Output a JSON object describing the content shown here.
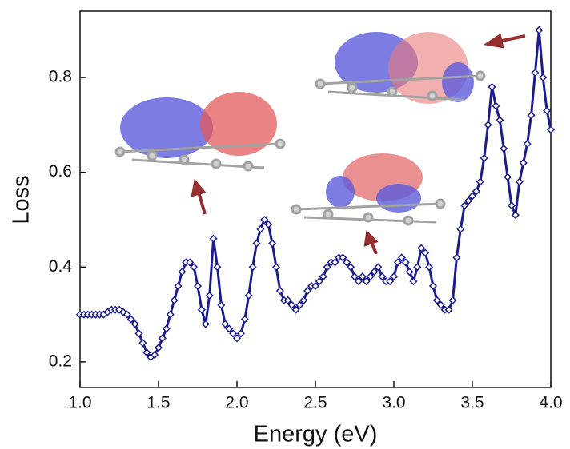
{
  "chart_data": {
    "type": "line",
    "x_label": "Energy (eV)",
    "y_label": "Loss",
    "x": [
      1.0,
      1.025,
      1.05,
      1.075,
      1.1,
      1.125,
      1.15,
      1.175,
      1.2,
      1.225,
      1.25,
      1.275,
      1.3,
      1.325,
      1.35,
      1.375,
      1.4,
      1.425,
      1.45,
      1.475,
      1.5,
      1.525,
      1.55,
      1.575,
      1.6,
      1.625,
      1.65,
      1.675,
      1.7,
      1.725,
      1.75,
      1.775,
      1.8,
      1.825,
      1.85,
      1.875,
      1.9,
      1.925,
      1.95,
      1.975,
      2.0,
      2.025,
      2.05,
      2.075,
      2.1,
      2.125,
      2.15,
      2.175,
      2.2,
      2.225,
      2.25,
      2.275,
      2.3,
      2.325,
      2.35,
      2.375,
      2.4,
      2.425,
      2.45,
      2.475,
      2.5,
      2.525,
      2.55,
      2.575,
      2.6,
      2.625,
      2.65,
      2.675,
      2.7,
      2.725,
      2.75,
      2.775,
      2.8,
      2.825,
      2.85,
      2.875,
      2.9,
      2.925,
      2.95,
      2.975,
      3.0,
      3.025,
      3.05,
      3.075,
      3.1,
      3.125,
      3.15,
      3.175,
      3.2,
      3.225,
      3.25,
      3.275,
      3.3,
      3.325,
      3.35,
      3.375,
      3.4,
      3.425,
      3.45,
      3.475,
      3.5,
      3.525,
      3.55,
      3.575,
      3.6,
      3.625,
      3.65,
      3.675,
      3.7,
      3.725,
      3.75,
      3.775,
      3.8,
      3.825,
      3.85,
      3.875,
      3.9,
      3.925,
      3.95,
      3.975,
      4.0
    ],
    "series": [
      {
        "color": "#1c1c8f",
        "values": [
          0.3,
          0.3,
          0.3,
          0.3,
          0.3,
          0.3,
          0.3,
          0.305,
          0.31,
          0.31,
          0.31,
          0.305,
          0.3,
          0.29,
          0.28,
          0.26,
          0.24,
          0.22,
          0.21,
          0.215,
          0.23,
          0.25,
          0.27,
          0.3,
          0.33,
          0.36,
          0.39,
          0.41,
          0.41,
          0.4,
          0.36,
          0.31,
          0.28,
          0.34,
          0.46,
          0.4,
          0.32,
          0.28,
          0.27,
          0.26,
          0.25,
          0.26,
          0.29,
          0.34,
          0.4,
          0.45,
          0.48,
          0.5,
          0.49,
          0.45,
          0.4,
          0.35,
          0.33,
          0.33,
          0.32,
          0.31,
          0.32,
          0.33,
          0.35,
          0.36,
          0.36,
          0.37,
          0.38,
          0.4,
          0.41,
          0.41,
          0.42,
          0.42,
          0.41,
          0.4,
          0.38,
          0.37,
          0.38,
          0.37,
          0.38,
          0.39,
          0.4,
          0.38,
          0.37,
          0.37,
          0.38,
          0.41,
          0.42,
          0.41,
          0.39,
          0.37,
          0.4,
          0.44,
          0.43,
          0.4,
          0.36,
          0.33,
          0.32,
          0.31,
          0.31,
          0.33,
          0.42,
          0.48,
          0.53,
          0.54,
          0.55,
          0.56,
          0.58,
          0.63,
          0.7,
          0.78,
          0.74,
          0.71,
          0.65,
          0.59,
          0.53,
          0.51,
          0.58,
          0.62,
          0.66,
          0.72,
          0.81,
          0.9,
          0.8,
          0.73,
          0.69
        ]
      }
    ],
    "xlim": [
      1.0,
      4.0
    ],
    "ylim": [
      0.146,
      0.94
    ],
    "xticks": [
      {
        "value": 1.0,
        "label": "1.0"
      },
      1.5,
      {
        "value": 2.0,
        "label": "2.0"
      },
      2.5,
      {
        "value": 3.0,
        "label": "3.0"
      },
      3.5,
      {
        "value": 4.0,
        "label": "4.0"
      }
    ],
    "yticks": [
      0.2,
      0.4,
      0.6,
      0.8
    ]
  }
}
